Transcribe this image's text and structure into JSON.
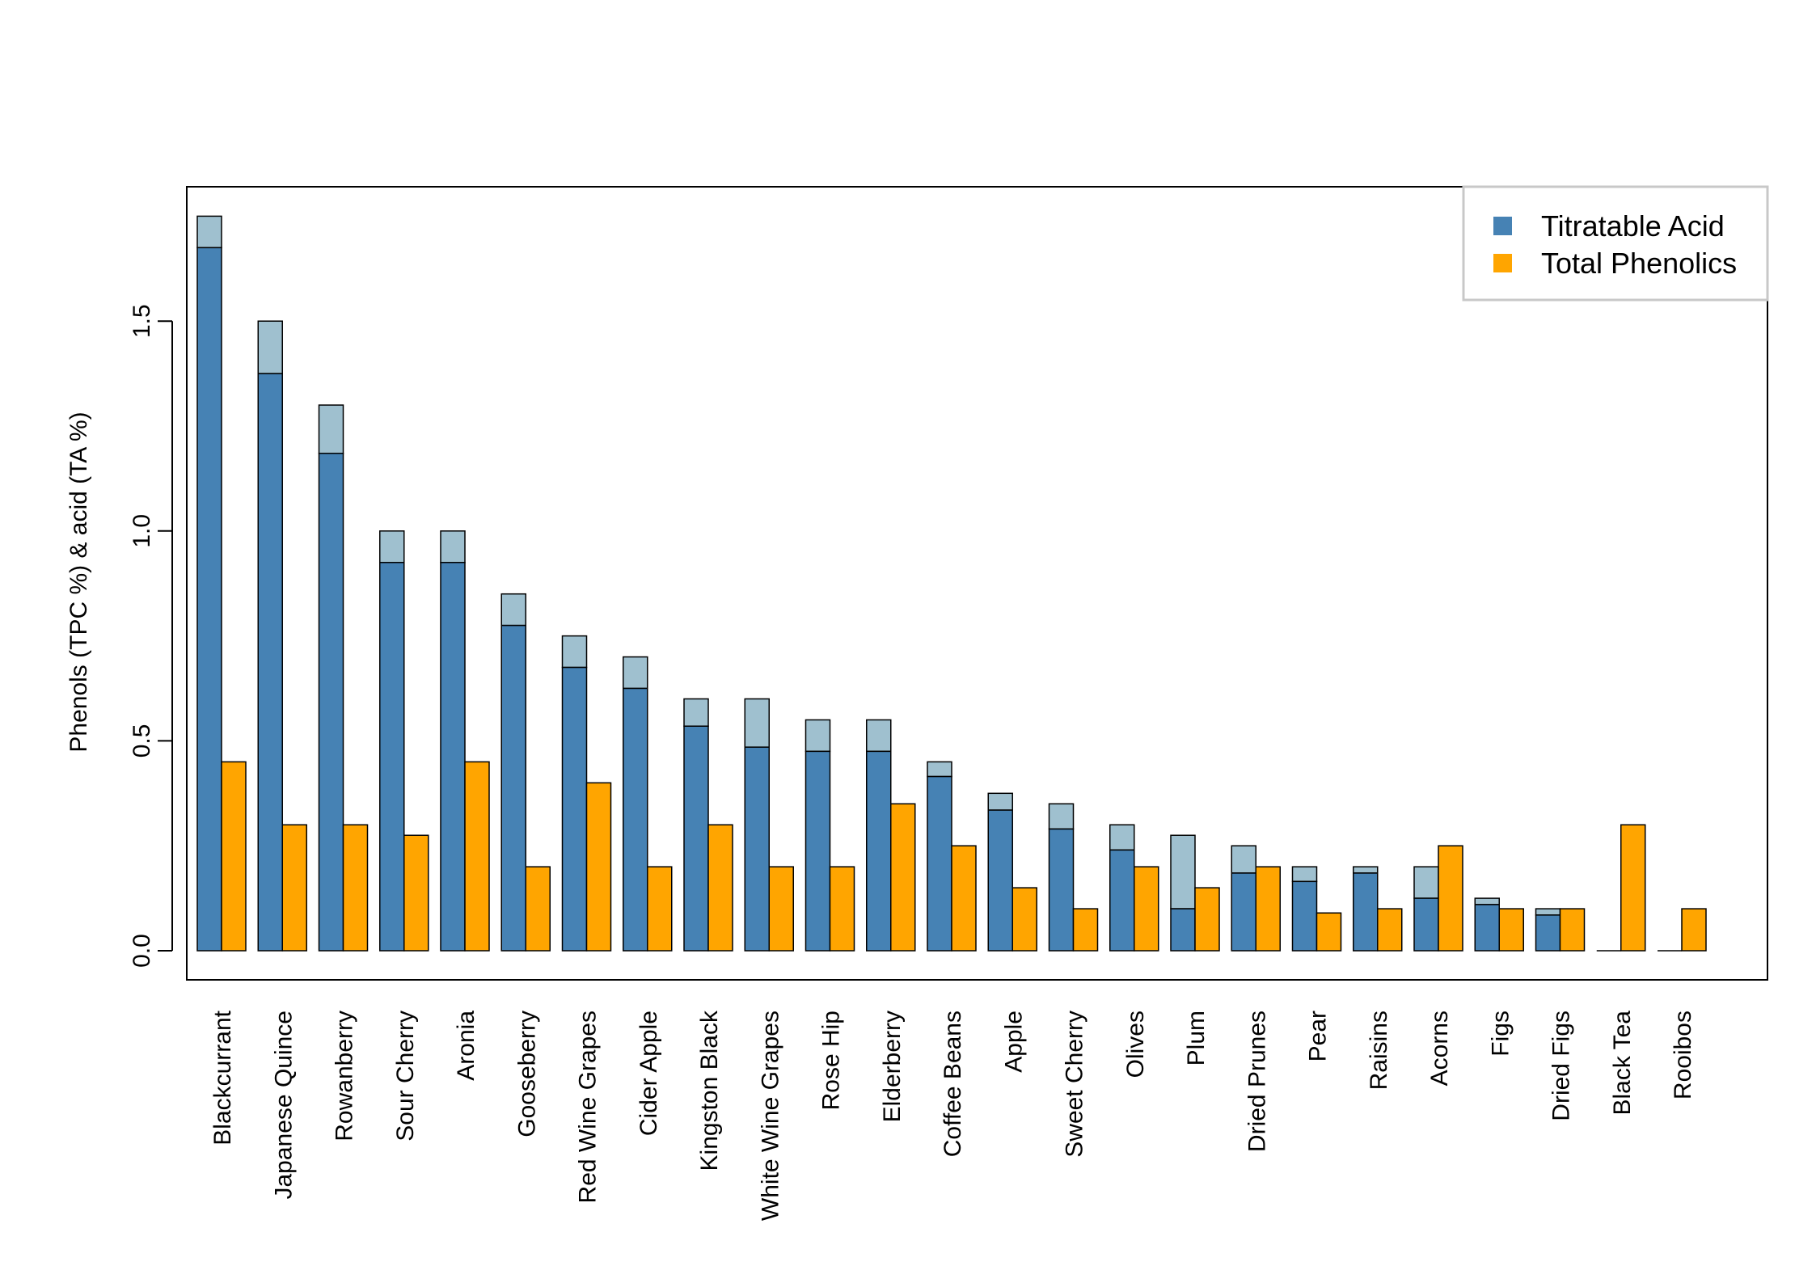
{
  "chart_data": {
    "type": "bar",
    "title": "",
    "xlabel": "",
    "ylabel": "Phenols (TPC %) & acid (TA %)",
    "ylim": [
      0,
      1.82
    ],
    "yticks": [
      "0.0",
      "0.5",
      "1.0",
      "1.5"
    ],
    "grid": false,
    "legend_position": "top-right",
    "categories": [
      "Blackcurrant",
      "Japanese Quince",
      "Rowanberry",
      "Sour Cherry",
      "Aronia",
      "Gooseberry",
      "Red Wine Grapes",
      "Cider Apple",
      "Kingston Black",
      "White Wine Grapes",
      "Rose Hip",
      "Elderberry",
      "Coffee Beans",
      "Apple",
      "Sweet Cherry",
      "Olives",
      "Plum",
      "Dried Prunes",
      "Pear",
      "Raisins",
      "Acorns",
      "Figs",
      "Dried Figs",
      "Black Tea",
      "Rooibos"
    ],
    "series": [
      {
        "name": "Titratable Acid",
        "color": "#4682b4",
        "values": [
          1.675,
          1.375,
          1.185,
          0.925,
          0.925,
          0.775,
          0.675,
          0.625,
          0.535,
          0.485,
          0.475,
          0.475,
          0.415,
          0.335,
          0.29,
          0.24,
          0.1,
          0.185,
          0.165,
          0.185,
          0.125,
          0.11,
          0.085,
          0,
          0
        ],
        "range_top": [
          1.75,
          1.5,
          1.3,
          1.0,
          1.0,
          0.85,
          0.75,
          0.7,
          0.6,
          0.6,
          0.55,
          0.55,
          0.45,
          0.375,
          0.35,
          0.3,
          0.275,
          0.25,
          0.2,
          0.2,
          0.2,
          0.125,
          0.1,
          0,
          0
        ],
        "range_color": "#9fc0cf"
      },
      {
        "name": "Total Phenolics",
        "color": "#ffa500",
        "values": [
          0.45,
          0.3,
          0.3,
          0.275,
          0.45,
          0.2,
          0.4,
          0.2,
          0.3,
          0.2,
          0.2,
          0.35,
          0.25,
          0.15,
          0.1,
          0.2,
          0.15,
          0.2,
          0.09,
          0.1,
          0.25,
          0.1,
          0.1,
          0.3,
          0.1
        ]
      }
    ]
  }
}
